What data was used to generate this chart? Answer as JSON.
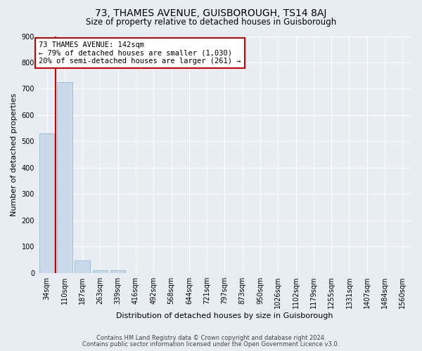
{
  "title": "73, THAMES AVENUE, GUISBOROUGH, TS14 8AJ",
  "subtitle": "Size of property relative to detached houses in Guisborough",
  "xlabel": "Distribution of detached houses by size in Guisborough",
  "ylabel": "Number of detached properties",
  "footnote1": "Contains HM Land Registry data © Crown copyright and database right 2024.",
  "footnote2": "Contains public sector information licensed under the Open Government Licence v3.0.",
  "bin_labels": [
    "34sqm",
    "110sqm",
    "187sqm",
    "263sqm",
    "339sqm",
    "416sqm",
    "492sqm",
    "568sqm",
    "644sqm",
    "721sqm",
    "797sqm",
    "873sqm",
    "950sqm",
    "1026sqm",
    "1102sqm",
    "1179sqm",
    "1255sqm",
    "1331sqm",
    "1407sqm",
    "1484sqm",
    "1560sqm"
  ],
  "bar_heights": [
    530,
    725,
    47,
    10,
    10,
    0,
    0,
    0,
    0,
    0,
    0,
    0,
    0,
    0,
    0,
    0,
    0,
    0,
    0,
    0,
    0
  ],
  "bar_color": "#c9d9e9",
  "bar_edge_color": "#8ab0cc",
  "annotation_box_text": "73 THAMES AVENUE: 142sqm\n← 79% of detached houses are smaller (1,030)\n20% of semi-detached houses are larger (261) →",
  "annotation_box_color": "#ffffff",
  "annotation_box_edge_color": "#cc0000",
  "vline_x": 0.5,
  "vline_color": "#cc0000",
  "background_color": "#e8edf3",
  "plot_background_color": "#e8edf3",
  "ylim": [
    0,
    900
  ],
  "yticks": [
    0,
    100,
    200,
    300,
    400,
    500,
    600,
    700,
    800,
    900
  ],
  "grid_color": "#ffffff",
  "title_fontsize": 10,
  "subtitle_fontsize": 8.5,
  "axis_label_fontsize": 8,
  "tick_fontsize": 7,
  "annotation_fontsize": 7.5
}
